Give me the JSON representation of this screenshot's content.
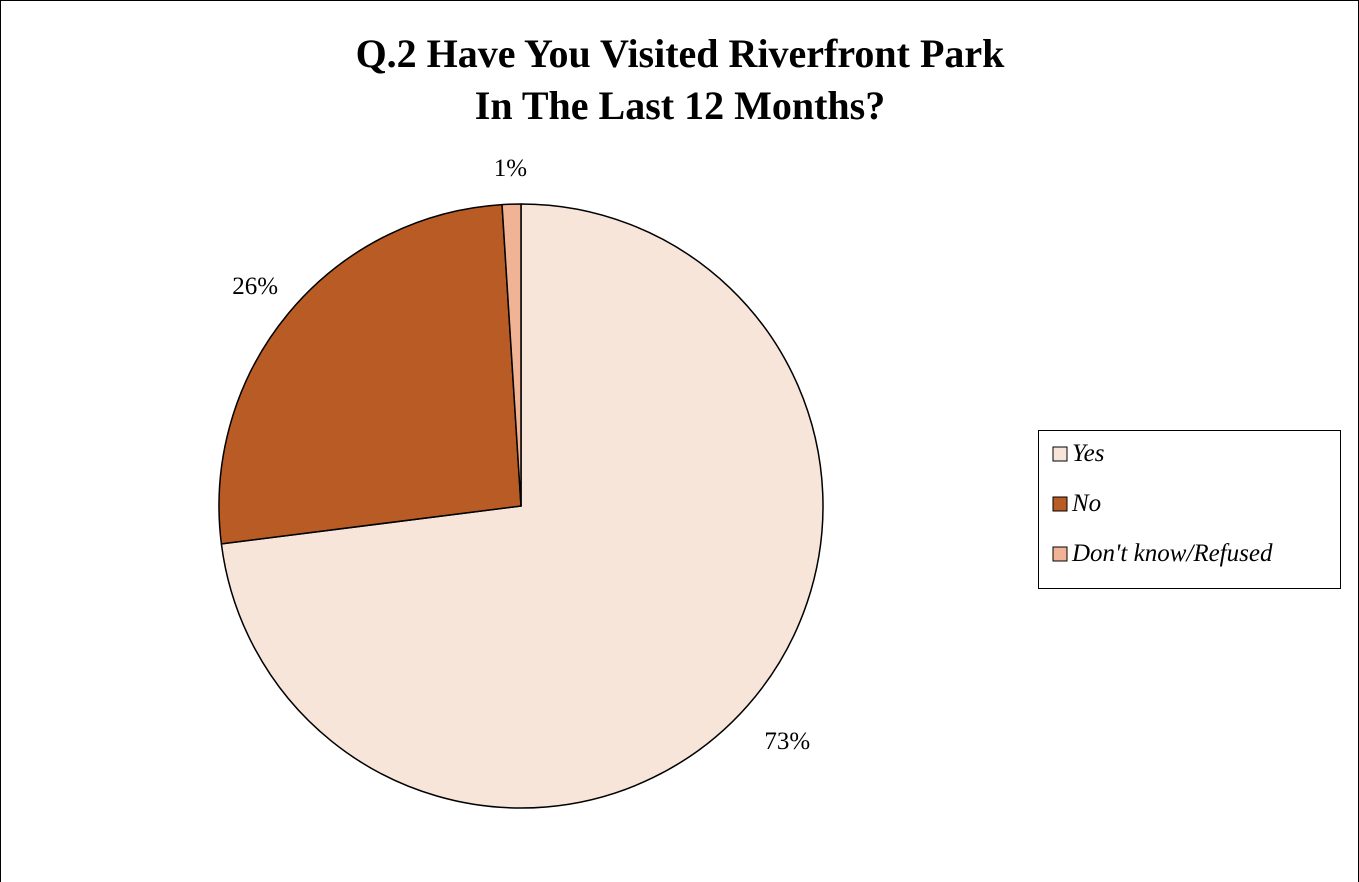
{
  "chart_data": {
    "type": "pie",
    "title": "Q.2 Have You Visited Riverfront Park In The Last 12 Months?",
    "title_lines": [
      "Q.2 Have You Visited Riverfront Park",
      "In The Last 12 Months?"
    ],
    "categories": [
      "Yes",
      "No",
      "Don't know/Refused"
    ],
    "values": [
      73,
      26,
      1
    ],
    "data_labels": [
      "73%",
      "26%",
      "1%"
    ],
    "colors": [
      "#F8E5DA",
      "#B95B24",
      "#F0B395"
    ],
    "start_angle_deg": 0,
    "direction": "clockwise",
    "legend_position": "right"
  }
}
